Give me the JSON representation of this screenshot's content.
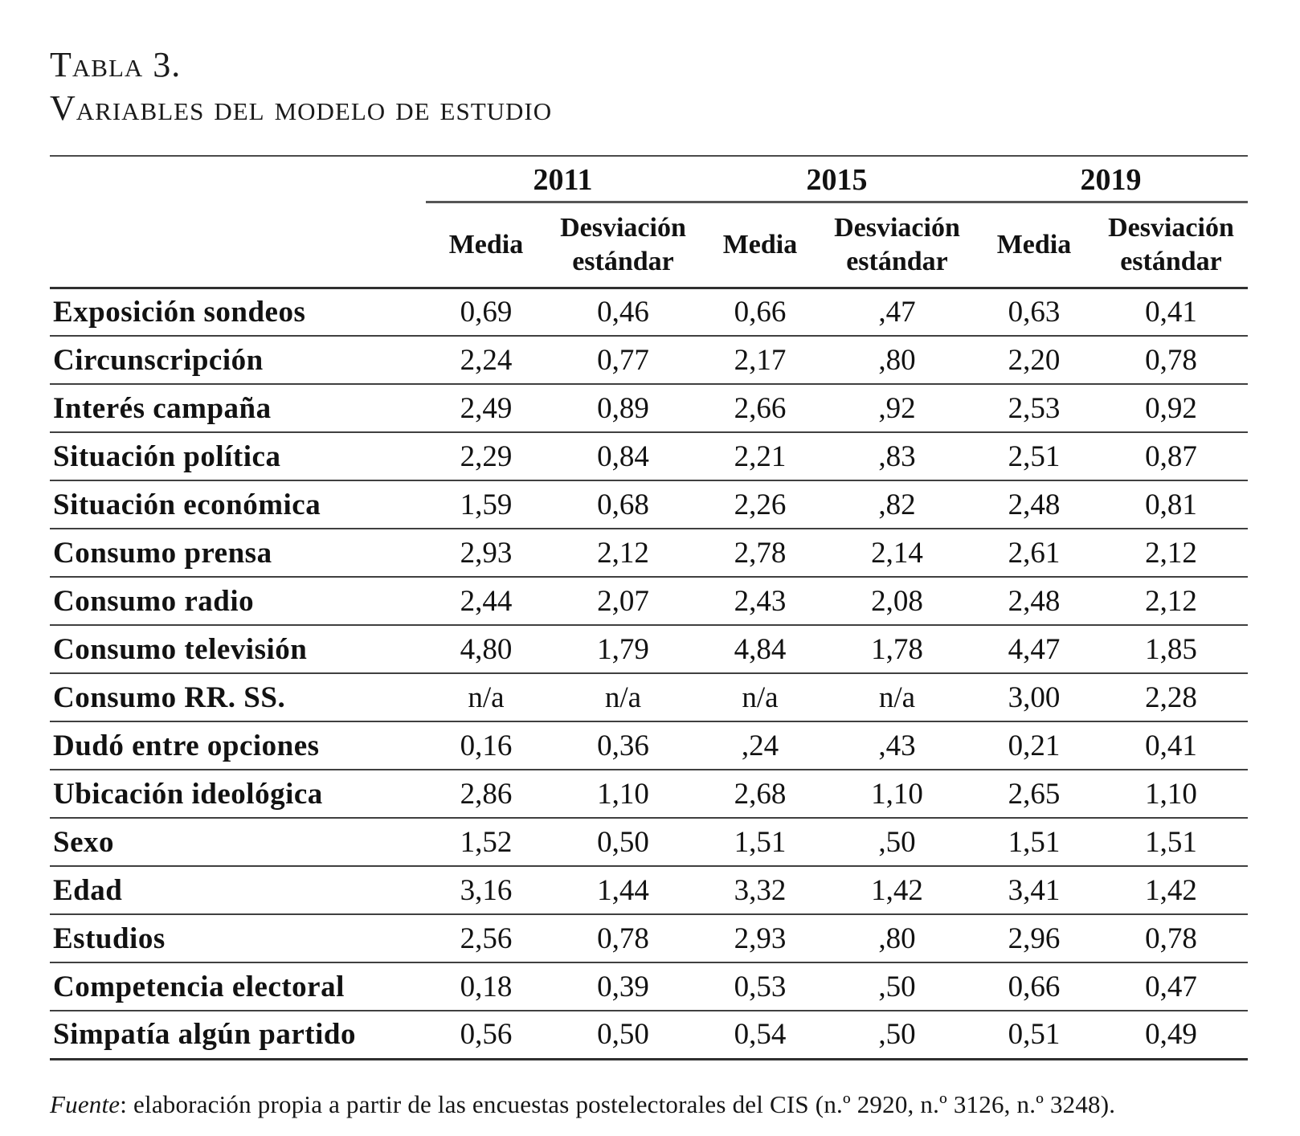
{
  "caption": {
    "line1": "Tabla 3.",
    "line2": "Variables del modelo de estudio"
  },
  "table": {
    "year_groups": [
      "2011",
      "2015",
      "2019"
    ],
    "media_label": "Media",
    "sd_label": "Desviación estándar",
    "rows": [
      {
        "label": "Exposición sondeos",
        "values": [
          "0,69",
          "0,46",
          "0,66",
          ",47",
          "0,63",
          "0,41"
        ]
      },
      {
        "label": "Circunscripción",
        "values": [
          "2,24",
          "0,77",
          "2,17",
          ",80",
          "2,20",
          "0,78"
        ]
      },
      {
        "label": "Interés campaña",
        "values": [
          "2,49",
          "0,89",
          "2,66",
          ",92",
          "2,53",
          "0,92"
        ]
      },
      {
        "label": "Situación política",
        "values": [
          "2,29",
          "0,84",
          "2,21",
          ",83",
          "2,51",
          "0,87"
        ]
      },
      {
        "label": "Situación económica",
        "values": [
          "1,59",
          "0,68",
          "2,26",
          ",82",
          "2,48",
          "0,81"
        ]
      },
      {
        "label": "Consumo prensa",
        "values": [
          "2,93",
          "2,12",
          "2,78",
          "2,14",
          "2,61",
          "2,12"
        ]
      },
      {
        "label": "Consumo radio",
        "values": [
          "2,44",
          "2,07",
          "2,43",
          "2,08",
          "2,48",
          "2,12"
        ]
      },
      {
        "label": "Consumo televisión",
        "values": [
          "4,80",
          "1,79",
          "4,84",
          "1,78",
          "4,47",
          "1,85"
        ]
      },
      {
        "label": "Consumo RR. SS.",
        "values": [
          "n/a",
          "n/a",
          "n/a",
          "n/a",
          "3,00",
          "2,28"
        ]
      },
      {
        "label": "Dudó entre opciones",
        "values": [
          "0,16",
          "0,36",
          ",24",
          ",43",
          "0,21",
          "0,41"
        ]
      },
      {
        "label": "Ubicación ideológica",
        "values": [
          "2,86",
          "1,10",
          "2,68",
          "1,10",
          "2,65",
          "1,10"
        ]
      },
      {
        "label": "Sexo",
        "values": [
          "1,52",
          "0,50",
          "1,51",
          ",50",
          "1,51",
          "1,51"
        ]
      },
      {
        "label": "Edad",
        "values": [
          "3,16",
          "1,44",
          "3,32",
          "1,42",
          "3,41",
          "1,42"
        ]
      },
      {
        "label": "Estudios",
        "values": [
          "2,56",
          "0,78",
          "2,93",
          ",80",
          "2,96",
          "0,78"
        ]
      },
      {
        "label": "Competencia electoral",
        "values": [
          "0,18",
          "0,39",
          "0,53",
          ",50",
          "0,66",
          "0,47"
        ]
      },
      {
        "label": "Simpatía algún partido",
        "values": [
          "0,56",
          "0,50",
          "0,54",
          ",50",
          "0,51",
          "0,49"
        ]
      }
    ]
  },
  "footer": {
    "source_label": "Fuente",
    "source_rest": ": elaboración propia a partir de las encuestas postelectorales del CIS (n.º 2920, n.º 3126, n.º 3248)."
  }
}
